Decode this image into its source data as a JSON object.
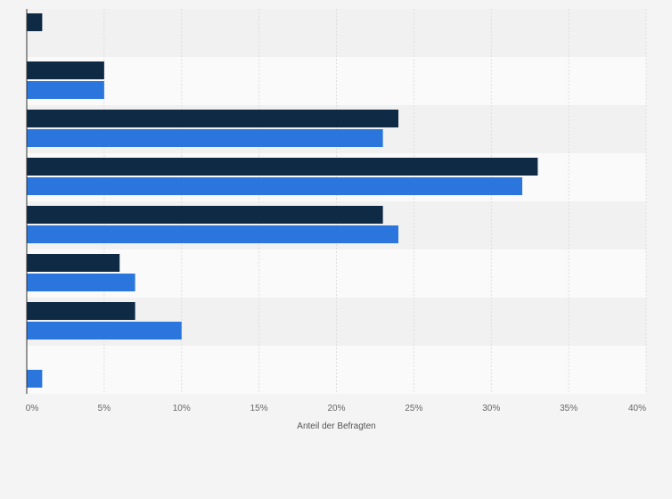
{
  "chart_data": {
    "type": "bar",
    "orientation": "horizontal",
    "categories": [
      "",
      "",
      "",
      "",
      "",
      "",
      "",
      ""
    ],
    "series": [
      {
        "color": "#0f2a45",
        "values": [
          1,
          5,
          24,
          33,
          23,
          6,
          7,
          null
        ]
      },
      {
        "color": "#2a76dd",
        "values": [
          null,
          5,
          23,
          32,
          24,
          7,
          10,
          1
        ]
      }
    ],
    "x_ticks": [
      "0%",
      "5%",
      "10%",
      "15%",
      "20%",
      "25%",
      "30%",
      "35%",
      "40%"
    ],
    "xlim": [
      0,
      40
    ],
    "xlabel": "Anteil der Befragten",
    "grid": true,
    "legend": "none",
    "colors": {
      "background": "#f4f4f4",
      "band_light": "#fafafa",
      "band_dark": "#f1f1f1",
      "grid": "#dddddd"
    }
  }
}
